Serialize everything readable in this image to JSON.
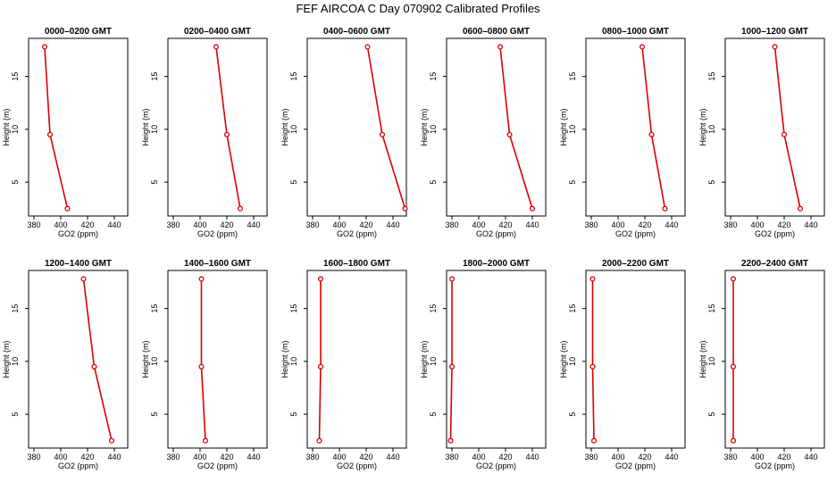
{
  "chart_data": {
    "title": "FEF  AIRCOA C  Day 070902  Calibrated Profiles",
    "type": "line",
    "xlabel": "GO2 (ppm)",
    "ylabel": "Height (m)",
    "xlim": [
      376,
      450
    ],
    "ylim": [
      1.8,
      18.6
    ],
    "xticks": [
      380,
      400,
      420,
      440
    ],
    "yticks": [
      5,
      10,
      15
    ],
    "heights": [
      17.8,
      9.5,
      2.5
    ],
    "panels": [
      {
        "title": "0000–0200 GMT",
        "values": [
          388,
          392,
          405
        ]
      },
      {
        "title": "0200–0400 GMT",
        "values": [
          412,
          420,
          430
        ]
      },
      {
        "title": "0400–0600 GMT",
        "values": [
          421,
          432,
          449
        ]
      },
      {
        "title": "0600–0800 GMT",
        "values": [
          416,
          423,
          440
        ]
      },
      {
        "title": "0800–1000 GMT",
        "values": [
          418,
          425,
          435
        ]
      },
      {
        "title": "1000–1200 GMT",
        "values": [
          413,
          420,
          432
        ]
      },
      {
        "title": "1200–1400 GMT",
        "values": [
          417,
          425,
          438
        ]
      },
      {
        "title": "1400–1600 GMT",
        "values": [
          401,
          401,
          404
        ]
      },
      {
        "title": "1600–1800 GMT",
        "values": [
          386,
          386,
          385
        ]
      },
      {
        "title": "1800–2000 GMT",
        "values": [
          380,
          380,
          379
        ]
      },
      {
        "title": "2000–2200 GMT",
        "values": [
          381,
          381,
          382
        ]
      },
      {
        "title": "2200–2400 GMT",
        "values": [
          382,
          382,
          382
        ]
      }
    ]
  }
}
